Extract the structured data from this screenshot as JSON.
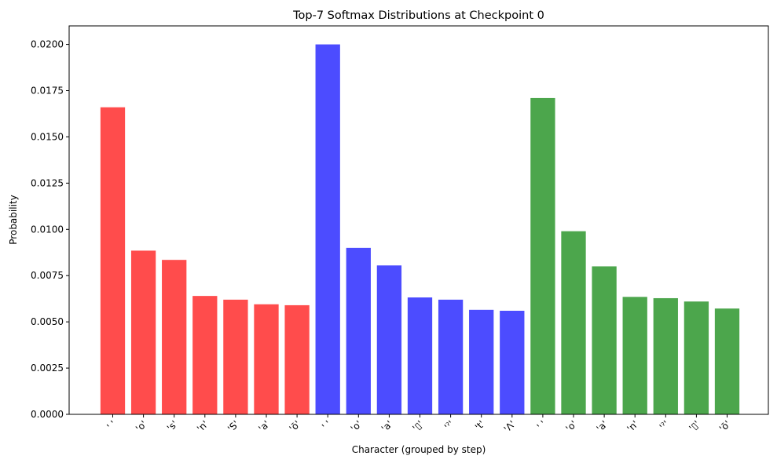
{
  "chart_data": {
    "type": "bar",
    "title": "Top-7 Softmax Distributions at Checkpoint 0",
    "xlabel": "Character (grouped by step)",
    "ylabel": "Probability",
    "ylim": [
      0,
      0.021
    ],
    "yticks": [
      "0.0000",
      "0.0025",
      "0.0050",
      "0.0075",
      "0.0100",
      "0.0125",
      "0.0150",
      "0.0175",
      "0.0200"
    ],
    "grid": false,
    "categories": [
      "' '",
      "'o'",
      "'s'",
      "'n'",
      "'S'",
      "'a'",
      "'ō'",
      "' '",
      "'o'",
      "'a'",
      "'▯'",
      "'ˀ'",
      "'t'",
      "'Λ'",
      "' '",
      "'o'",
      "'a'",
      "'n'",
      "'ˀ'",
      "'▯'",
      "'ō'"
    ],
    "values": [
      0.0166,
      0.00885,
      0.00835,
      0.0064,
      0.0062,
      0.00595,
      0.0059,
      0.02,
      0.009,
      0.00805,
      0.00632,
      0.0062,
      0.00565,
      0.0056,
      0.0171,
      0.0099,
      0.008,
      0.00635,
      0.00628,
      0.0061,
      0.00572
    ],
    "bar_colors": [
      "#ff4c4c",
      "#ff4c4c",
      "#ff4c4c",
      "#ff4c4c",
      "#ff4c4c",
      "#ff4c4c",
      "#ff4c4c",
      "#4c4cff",
      "#4c4cff",
      "#4c4cff",
      "#4c4cff",
      "#4c4cff",
      "#4c4cff",
      "#4c4cff",
      "#4ca64c",
      "#4ca64c",
      "#4ca64c",
      "#4ca64c",
      "#4ca64c",
      "#4ca64c",
      "#4ca64c"
    ]
  }
}
